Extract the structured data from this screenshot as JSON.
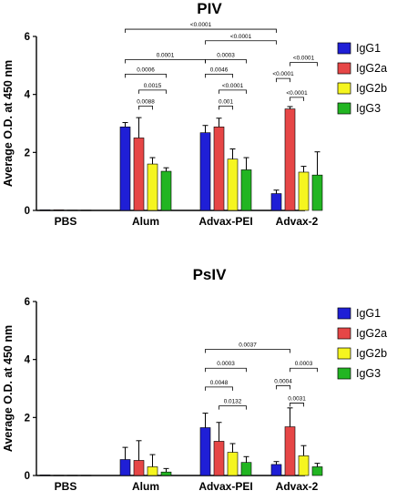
{
  "chart_data": [
    {
      "type": "bar",
      "title": "PIV",
      "ylabel": "Average O.D. at 450 nm",
      "xlabel": "",
      "ylim": [
        0,
        6
      ],
      "yticks": [
        "0",
        "2",
        "4",
        "6"
      ],
      "categories": [
        "PBS",
        "Alum",
        "Advax-PEI",
        "Advax-2"
      ],
      "legend_position": "right",
      "grid": false,
      "series": [
        {
          "name": "IgG1",
          "color": "#1f1fd6",
          "values": [
            0.02,
            2.88,
            2.68,
            0.58
          ],
          "errors": [
            0.01,
            0.15,
            0.25,
            0.12
          ]
        },
        {
          "name": "IgG2a",
          "color": "#e64646",
          "values": [
            0.02,
            2.5,
            2.88,
            3.5
          ],
          "errors": [
            0.01,
            0.7,
            0.3,
            0.08
          ]
        },
        {
          "name": "IgG2b",
          "color": "#f5f51f",
          "values": [
            0.01,
            1.6,
            1.77,
            1.32
          ],
          "errors": [
            0.01,
            0.22,
            0.35,
            0.2
          ]
        },
        {
          "name": "IgG3",
          "color": "#22b522",
          "values": [
            0.01,
            1.35,
            1.4,
            1.22
          ],
          "errors": [
            0.01,
            0.12,
            0.42,
            0.8
          ]
        }
      ],
      "annotations": [
        {
          "label": "<0.0001",
          "group_from": 1,
          "series_from": 0,
          "group_to": 3,
          "series_to": 0,
          "y": 6.25
        },
        {
          "label": "<0.0001",
          "group_from": 2,
          "series_from": 0,
          "group_to": 3,
          "series_to": 0,
          "y": 5.85
        },
        {
          "label": "0.0001",
          "group_from": 1,
          "series_from": 0,
          "group_to": 2,
          "series_to": 0,
          "y": 5.2
        },
        {
          "label": "0.0006",
          "group_from": 1,
          "series_from": 0,
          "group_to": 1,
          "series_to": 3,
          "y": 4.7
        },
        {
          "label": "0.0015",
          "group_from": 1,
          "series_from": 1,
          "group_to": 1,
          "series_to": 3,
          "y": 4.15
        },
        {
          "label": "0.0088",
          "group_from": 1,
          "series_from": 1,
          "group_to": 1,
          "series_to": 2,
          "y": 3.6
        },
        {
          "label": "0.0003",
          "group_from": 2,
          "series_from": 0,
          "group_to": 2,
          "series_to": 3,
          "y": 5.2
        },
        {
          "label": "0.0046",
          "group_from": 2,
          "series_from": 0,
          "group_to": 2,
          "series_to": 2,
          "y": 4.7
        },
        {
          "label": "<0.0001",
          "group_from": 2,
          "series_from": 1,
          "group_to": 2,
          "series_to": 3,
          "y": 4.15
        },
        {
          "label": "0.001",
          "group_from": 2,
          "series_from": 1,
          "group_to": 2,
          "series_to": 2,
          "y": 3.6
        },
        {
          "label": "<0.0001",
          "group_from": 3,
          "series_from": 0,
          "group_to": 3,
          "series_to": 1,
          "y": 4.55
        },
        {
          "label": "<0.0001",
          "group_from": 3,
          "series_from": 1,
          "group_to": 3,
          "series_to": 3,
          "y": 5.1
        },
        {
          "label": "<0.0001",
          "group_from": 3,
          "series_from": 1,
          "group_to": 3,
          "series_to": 2,
          "y": 3.9
        }
      ]
    },
    {
      "type": "bar",
      "title": "PsIV",
      "ylabel": "Average O.D. at 450 nm",
      "xlabel": "",
      "ylim": [
        0,
        6
      ],
      "yticks": [
        "0",
        "2",
        "4",
        "6"
      ],
      "categories": [
        "PBS",
        "Alum",
        "Advax-PEI",
        "Advax-2"
      ],
      "legend_position": "right",
      "grid": false,
      "series": [
        {
          "name": "IgG1",
          "color": "#1f1fd6",
          "values": [
            0.02,
            0.55,
            1.65,
            0.38
          ],
          "errors": [
            0.01,
            0.42,
            0.5,
            0.1
          ]
        },
        {
          "name": "IgG2a",
          "color": "#e64646",
          "values": [
            0.01,
            0.52,
            1.18,
            1.68
          ],
          "errors": [
            0.01,
            0.68,
            0.65,
            0.65
          ]
        },
        {
          "name": "IgG2b",
          "color": "#f5f51f",
          "values": [
            0.01,
            0.3,
            0.8,
            0.68
          ],
          "errors": [
            0.01,
            0.42,
            0.3,
            0.35
          ]
        },
        {
          "name": "IgG3",
          "color": "#22b522",
          "values": [
            0.01,
            0.12,
            0.45,
            0.3
          ],
          "errors": [
            0.01,
            0.12,
            0.2,
            0.12
          ]
        }
      ],
      "annotations": [
        {
          "label": "0.0037",
          "group_from": 2,
          "series_from": 0,
          "group_to": 3,
          "series_to": 1,
          "y": 4.35
        },
        {
          "label": "0.0003",
          "group_from": 2,
          "series_from": 0,
          "group_to": 2,
          "series_to": 3,
          "y": 3.7
        },
        {
          "label": "0.0048",
          "group_from": 2,
          "series_from": 0,
          "group_to": 2,
          "series_to": 2,
          "y": 3.05
        },
        {
          "label": "0.0132",
          "group_from": 2,
          "series_from": 1,
          "group_to": 2,
          "series_to": 3,
          "y": 2.4
        },
        {
          "label": "0.0004",
          "group_from": 3,
          "series_from": 0,
          "group_to": 3,
          "series_to": 1,
          "y": 3.1
        },
        {
          "label": "0.0003",
          "group_from": 3,
          "series_from": 1,
          "group_to": 3,
          "series_to": 3,
          "y": 3.7
        },
        {
          "label": "0.0031",
          "group_from": 3,
          "series_from": 1,
          "group_to": 3,
          "series_to": 2,
          "y": 2.5
        }
      ]
    }
  ]
}
